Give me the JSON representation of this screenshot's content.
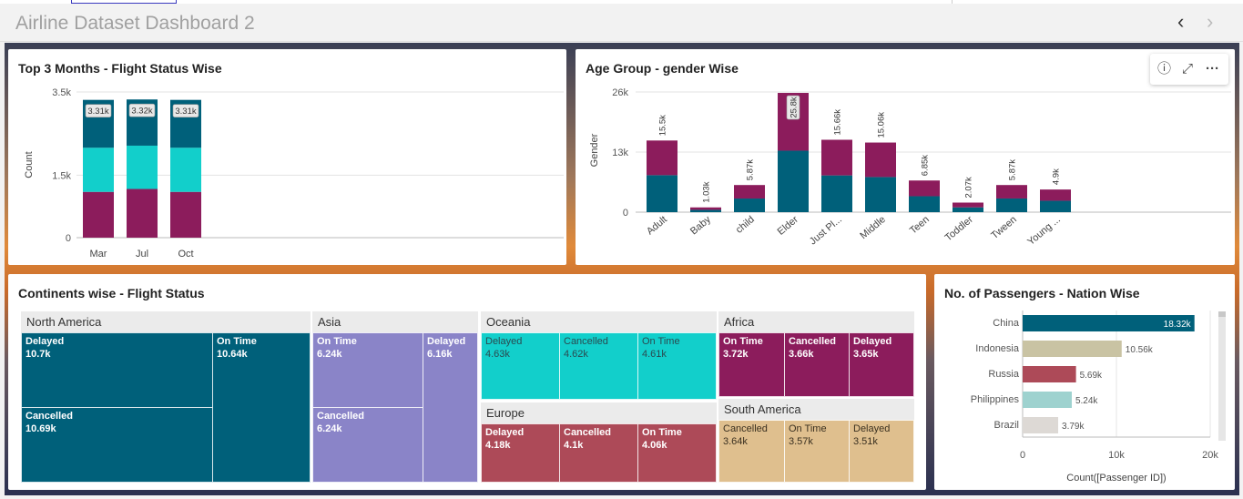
{
  "app": {
    "title": "Airline Dataset Dashboard 2",
    "prev_icon": "chevron-left-icon",
    "next_icon": "chevron-right-icon"
  },
  "colors": {
    "teal_dark": "#00607a",
    "teal_light": "#12cfcb",
    "purple": "#8c1c5c",
    "lavender": "#8a84c8",
    "red": "#ad4a58",
    "tan": "#dfbf8e",
    "china_bar": "#00607a",
    "indonesia_bar": "#c9c3a3",
    "russia_bar": "#ad4a58",
    "philippines_bar": "#9ed2cf",
    "brazil_bar": "#ddd9d5"
  },
  "panel1": {
    "title": "Top 3 Months - Flight Status Wise",
    "chart_data": {
      "type": "bar",
      "stacked": true,
      "categories": [
        "Mar",
        "Jul",
        "Oct"
      ],
      "series": [
        {
          "color": "#8c1c5c",
          "values": [
            1100,
            1170,
            1100
          ]
        },
        {
          "color": "#12cfcb",
          "values": [
            1060,
            1040,
            1060
          ]
        },
        {
          "color": "#00607a",
          "values": [
            1150,
            1110,
            1150
          ]
        }
      ],
      "totals": [
        "3.31k",
        "3.32k",
        "3.31k"
      ],
      "ylabel": "Count",
      "yticks": [
        "0",
        "1.5k",
        "3.5k"
      ],
      "ylim": [
        0,
        3500
      ]
    }
  },
  "panel2": {
    "title": "Age Group - gender Wise",
    "toolbar": {
      "info_icon": "info-icon",
      "expand_icon": "expand-icon",
      "more_icon": "more-icon",
      "info_glyph": "ⓘ",
      "expand_glyph": "⤢",
      "more_glyph": "···"
    },
    "chart_data": {
      "type": "bar",
      "stacked": true,
      "categories": [
        "Adult",
        "Baby",
        "child",
        "Elder",
        "Just Pl...",
        "Middle",
        "Teen",
        "Toddler",
        "Tween",
        "Young ..."
      ],
      "series": [
        {
          "color": "#00607a",
          "values": [
            8000,
            500,
            2950,
            13300,
            7950,
            7600,
            3450,
            1040,
            2960,
            2470
          ]
        },
        {
          "color": "#8c1c5c",
          "values": [
            7500,
            530,
            2920,
            12500,
            7710,
            7460,
            3400,
            1030,
            2910,
            2430
          ]
        }
      ],
      "totals": [
        "15.5k",
        "1.03k",
        "5.87k",
        "25.8k",
        "15.66k",
        "15.06k",
        "6.85k",
        "2.07k",
        "5.87k",
        "4.9k"
      ],
      "ylabel": "Gender",
      "yticks": [
        "0",
        "13k",
        "26k"
      ],
      "ylim": [
        0,
        26000
      ]
    }
  },
  "panel3": {
    "title": "Continents wise - Flight Status",
    "groups": [
      {
        "name": "North America",
        "cells": [
          {
            "label": "Delayed",
            "value": "10.7k"
          },
          {
            "label": "Cancelled",
            "value": "10.69k"
          },
          {
            "label": "On Time",
            "value": "10.64k"
          }
        ]
      },
      {
        "name": "Asia",
        "cells": [
          {
            "label": "On Time",
            "value": "6.24k"
          },
          {
            "label": "Cancelled",
            "value": "6.24k"
          },
          {
            "label": "Delayed",
            "value": "6.16k"
          }
        ]
      },
      {
        "name": "Oceania",
        "cells": [
          {
            "label": "Delayed",
            "value": "4.63k"
          },
          {
            "label": "Cancelled",
            "value": "4.62k"
          },
          {
            "label": "On Time",
            "value": "4.61k"
          }
        ]
      },
      {
        "name": "Europe",
        "cells": [
          {
            "label": "Delayed",
            "value": "4.18k"
          },
          {
            "label": "Cancelled",
            "value": "4.1k"
          },
          {
            "label": "On Time",
            "value": "4.06k"
          }
        ]
      },
      {
        "name": "Africa",
        "cells": [
          {
            "label": "On Time",
            "value": "3.72k"
          },
          {
            "label": "Cancelled",
            "value": "3.66k"
          },
          {
            "label": "Delayed",
            "value": "3.65k"
          }
        ]
      },
      {
        "name": "South America",
        "cells": [
          {
            "label": "Cancelled",
            "value": "3.64k"
          },
          {
            "label": "On Time",
            "value": "3.57k"
          },
          {
            "label": "Delayed",
            "value": "3.51k"
          }
        ]
      }
    ]
  },
  "panel4": {
    "title": "No. of Passengers - Nation Wise",
    "chart_data": {
      "type": "bar",
      "orientation": "horizontal",
      "categories": [
        "China",
        "Indonesia",
        "Russia",
        "Philippines",
        "Brazil"
      ],
      "values": [
        18320,
        10560,
        5690,
        5240,
        3790
      ],
      "labels": [
        "18.32k",
        "10.56k",
        "5.69k",
        "5.24k",
        "3.79k"
      ],
      "xlabel": "Count([Passenger ID])",
      "xticks": [
        "0",
        "10k",
        "20k"
      ],
      "xlim": [
        0,
        20000
      ]
    }
  }
}
